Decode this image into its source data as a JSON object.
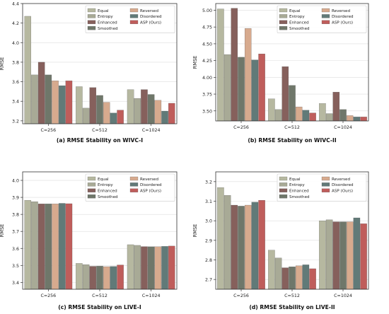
{
  "colors": [
    "#b6b8a0",
    "#a8aa96",
    "#86605c",
    "#6f776a",
    "#d7aa8e",
    "#617a78",
    "#bf5d5b"
  ],
  "chart_data": [
    {
      "type": "bar",
      "title": "",
      "caption": "(a) RMSE Stability on WIVC-I",
      "xlabel": "",
      "ylabel": "RMSE",
      "categories": [
        "C=256",
        "C=512",
        "C=1024"
      ],
      "ylim": [
        3.17,
        4.4
      ],
      "yticks": [
        "3.2",
        "3.4",
        "3.6",
        "3.8",
        "4.0",
        "4.2",
        "4.4"
      ],
      "ytick_values": [
        3.2,
        3.4,
        3.6,
        3.8,
        4.0,
        4.2,
        4.4
      ],
      "grid": true,
      "legend_position": "top-right",
      "series": [
        {
          "name": "Equal",
          "values": [
            4.27,
            3.55,
            3.52
          ]
        },
        {
          "name": "Entropy",
          "values": [
            3.67,
            3.33,
            3.43
          ]
        },
        {
          "name": "Enhanced",
          "values": [
            3.8,
            3.54,
            3.52
          ]
        },
        {
          "name": "Smoothed",
          "values": [
            3.67,
            3.46,
            3.47
          ]
        },
        {
          "name": "Reversed",
          "values": [
            3.61,
            3.39,
            3.41
          ]
        },
        {
          "name": "Disordered",
          "values": [
            3.56,
            3.28,
            3.3
          ]
        },
        {
          "name": "ASP (Ours)",
          "values": [
            3.61,
            3.31,
            3.38
          ]
        }
      ]
    },
    {
      "type": "bar",
      "title": "",
      "caption": "(b) RMSE Stability on WIVC-II",
      "xlabel": "",
      "ylabel": "RMSE",
      "categories": [
        "C=256",
        "C=512",
        "C=1024"
      ],
      "ylim": [
        3.35,
        5.1
      ],
      "yticks": [
        "3.50",
        "3.75",
        "4.00",
        "4.25",
        "4.50",
        "4.75",
        "5.00"
      ],
      "ytick_values": [
        3.5,
        3.75,
        4.0,
        4.25,
        4.5,
        4.75,
        5.0
      ],
      "grid": true,
      "legend_position": "top-right",
      "series": [
        {
          "name": "Equal",
          "values": [
            5.02,
            3.68,
            3.61
          ]
        },
        {
          "name": "Entropy",
          "values": [
            4.34,
            3.52,
            3.46
          ]
        },
        {
          "name": "Enhanced",
          "values": [
            5.03,
            4.16,
            3.78
          ]
        },
        {
          "name": "Smoothed",
          "values": [
            4.3,
            3.88,
            3.52
          ]
        },
        {
          "name": "Reversed",
          "values": [
            4.73,
            3.56,
            3.43
          ]
        },
        {
          "name": "Disordered",
          "values": [
            4.26,
            3.51,
            3.41
          ]
        },
        {
          "name": "ASP (Ours)",
          "values": [
            4.35,
            3.47,
            3.41
          ]
        }
      ]
    },
    {
      "type": "bar",
      "title": "",
      "caption": "(c) RMSE Stability on LIVE-I",
      "xlabel": "",
      "ylabel": "RMSE",
      "categories": [
        "C=256",
        "C=512",
        "C=1024"
      ],
      "ylim": [
        3.36,
        4.05
      ],
      "yticks": [
        "3.4",
        "3.5",
        "3.6",
        "3.7",
        "3.8",
        "3.9",
        "4.0"
      ],
      "ytick_values": [
        3.4,
        3.5,
        3.6,
        3.7,
        3.8,
        3.9,
        4.0
      ],
      "grid": true,
      "legend_position": "top-right",
      "series": [
        {
          "name": "Equal",
          "values": [
            3.883,
            3.512,
            3.622
          ]
        },
        {
          "name": "Entropy",
          "values": [
            3.875,
            3.505,
            3.618
          ]
        },
        {
          "name": "Enhanced",
          "values": [
            3.862,
            3.495,
            3.611
          ]
        },
        {
          "name": "Smoothed",
          "values": [
            3.862,
            3.496,
            3.61
          ]
        },
        {
          "name": "Reversed",
          "values": [
            3.862,
            3.493,
            3.61
          ]
        },
        {
          "name": "Disordered",
          "values": [
            3.865,
            3.494,
            3.612
          ]
        },
        {
          "name": "ASP (Ours)",
          "values": [
            3.863,
            3.503,
            3.614
          ]
        }
      ]
    },
    {
      "type": "bar",
      "title": "",
      "caption": "(d) RMSE Stability on LIVE-II",
      "xlabel": "",
      "ylabel": "RMSE",
      "categories": [
        "C=256",
        "C=512",
        "C=1024"
      ],
      "ylim": [
        2.65,
        3.25
      ],
      "yticks": [
        "2.7",
        "2.8",
        "2.9",
        "3.0",
        "3.1",
        "3.2"
      ],
      "ytick_values": [
        2.7,
        2.8,
        2.9,
        3.0,
        3.1,
        3.2
      ],
      "grid": true,
      "legend_position": "top-right",
      "series": [
        {
          "name": "Equal",
          "values": [
            3.17,
            2.85,
            3.0
          ]
        },
        {
          "name": "Entropy",
          "values": [
            3.13,
            2.81,
            3.005
          ]
        },
        {
          "name": "Enhanced",
          "values": [
            3.08,
            2.76,
            2.995
          ]
        },
        {
          "name": "Smoothed",
          "values": [
            3.075,
            2.765,
            2.995
          ]
        },
        {
          "name": "Reversed",
          "values": [
            3.08,
            2.77,
            2.995
          ]
        },
        {
          "name": "Disordered",
          "values": [
            3.095,
            2.775,
            3.015
          ]
        },
        {
          "name": "ASP (Ours)",
          "values": [
            3.105,
            2.755,
            2.985
          ]
        }
      ]
    }
  ]
}
